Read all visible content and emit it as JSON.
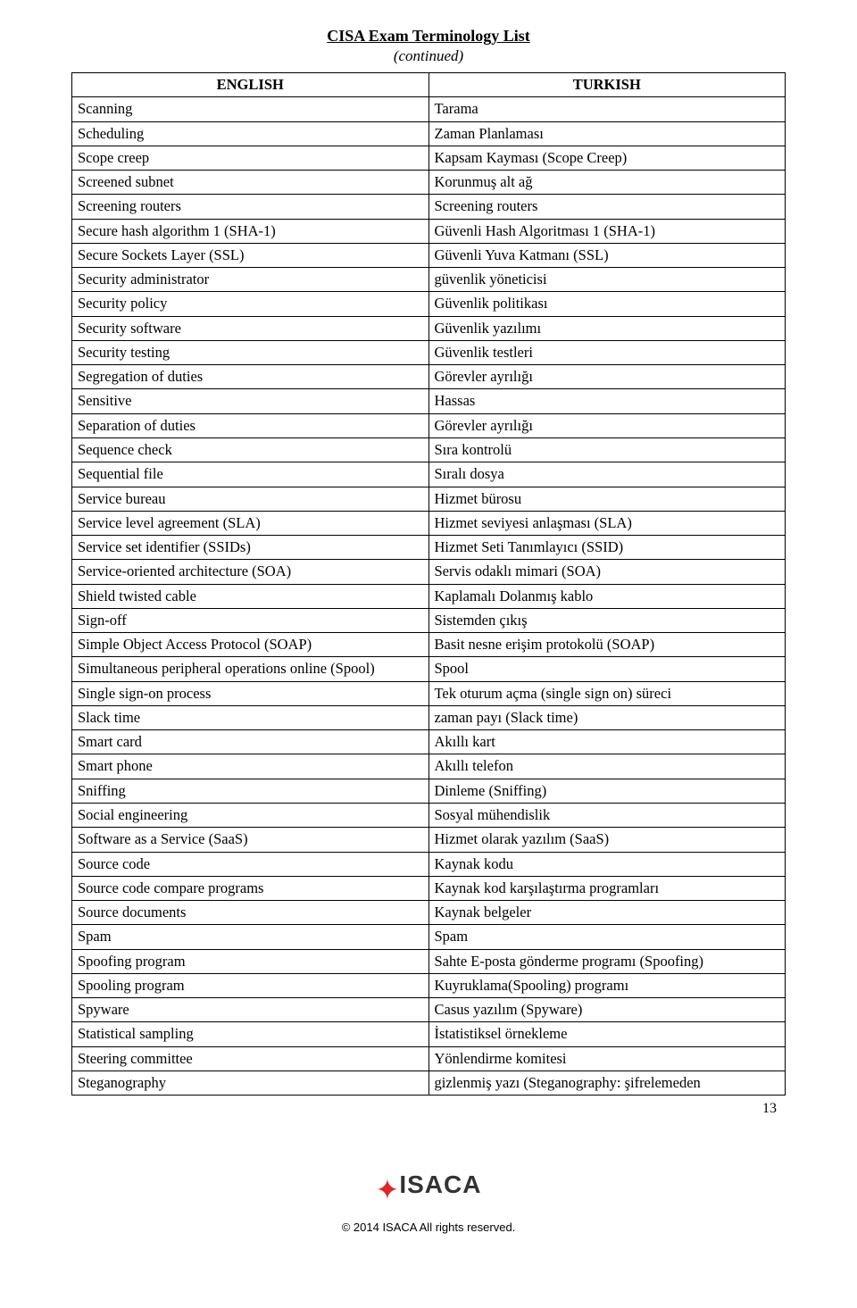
{
  "header": {
    "title": "CISA Exam Terminology List",
    "subtitle": "(continued)"
  },
  "table": {
    "columns": [
      "ENGLISH",
      "TURKISH"
    ],
    "rows": [
      [
        "Scanning",
        "Tarama"
      ],
      [
        "Scheduling",
        "Zaman Planlaması"
      ],
      [
        "Scope creep",
        "Kapsam Kayması (Scope Creep)"
      ],
      [
        "Screened subnet",
        "Korunmuş alt ağ"
      ],
      [
        "Screening routers",
        "Screening routers"
      ],
      [
        "Secure hash algorithm 1 (SHA-1)",
        "Güvenli Hash Algoritması 1 (SHA-1)"
      ],
      [
        "Secure Sockets Layer (SSL)",
        "Güvenli Yuva Katmanı (SSL)"
      ],
      [
        "Security administrator",
        "güvenlik yöneticisi"
      ],
      [
        "Security policy",
        "Güvenlik politikası"
      ],
      [
        "Security software",
        "Güvenlik yazılımı"
      ],
      [
        "Security testing",
        "Güvenlik testleri"
      ],
      [
        "Segregation of duties",
        "Görevler ayrılığı"
      ],
      [
        "Sensitive",
        "Hassas"
      ],
      [
        "Separation of duties",
        "Görevler ayrılığı"
      ],
      [
        "Sequence check",
        "Sıra kontrolü"
      ],
      [
        "Sequential file",
        "Sıralı dosya"
      ],
      [
        "Service bureau",
        "Hizmet bürosu"
      ],
      [
        "Service level agreement (SLA)",
        "Hizmet seviyesi anlaşması (SLA)"
      ],
      [
        "Service set identifier (SSIDs)",
        "Hizmet Seti Tanımlayıcı (SSID)"
      ],
      [
        "Service-oriented architecture (SOA)",
        "Servis odaklı mimari (SOA)"
      ],
      [
        "Shield twisted cable",
        "Kaplamalı Dolanmış  kablo"
      ],
      [
        "Sign-off",
        "Sistemden çıkış"
      ],
      [
        "Simple Object Access Protocol (SOAP)",
        "Basit nesne erişim protokolü (SOAP)"
      ],
      [
        "Simultaneous peripheral operations online (Spool)",
        "Spool"
      ],
      [
        "Single sign-on process",
        "Tek oturum açma (single sign on) süreci"
      ],
      [
        "Slack time",
        "zaman payı (Slack time)"
      ],
      [
        "Smart card",
        "Akıllı kart"
      ],
      [
        "Smart phone",
        "Akıllı telefon"
      ],
      [
        "Sniffing",
        "Dinleme (Sniffing)"
      ],
      [
        "Social engineering",
        "Sosyal mühendislik"
      ],
      [
        "Software as a Service (SaaS)",
        "Hizmet olarak yazılım (SaaS)"
      ],
      [
        "Source code",
        "Kaynak kodu"
      ],
      [
        "Source code compare programs",
        "Kaynak kod karşılaştırma programları"
      ],
      [
        "Source documents",
        "Kaynak belgeler"
      ],
      [
        "Spam",
        "Spam"
      ],
      [
        "Spoofing program",
        "Sahte E-posta gönderme programı (Spoofing)"
      ],
      [
        "Spooling program",
        "Kuyruklama(Spooling) programı"
      ],
      [
        "Spyware",
        "Casus yazılım (Spyware)"
      ],
      [
        "Statistical sampling",
        "İstatistiksel örnekleme"
      ],
      [
        "Steering committee",
        "Yönlendirme komitesi"
      ],
      [
        "Steganography",
        "gizlenmiş yazı (Steganography: şifrelemeden"
      ]
    ]
  },
  "page_number": "13",
  "logo_text": "ISACA",
  "copyright": "© 2014 ISACA All rights reserved."
}
